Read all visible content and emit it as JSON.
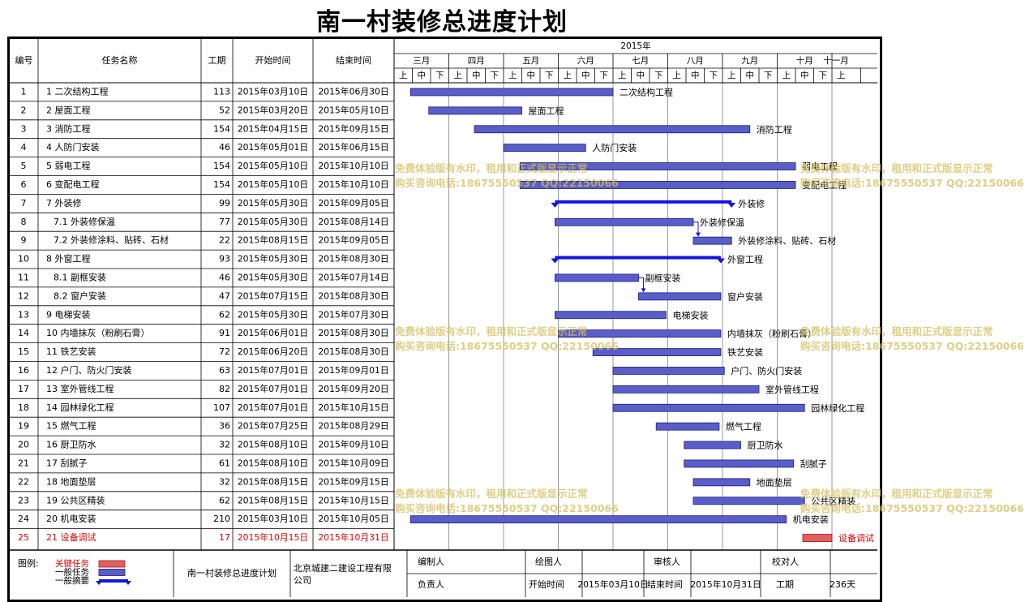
{
  "page_title": "南一村装修总进度计划",
  "chart_data": {
    "type": "gantt",
    "year_label": "2015年",
    "columns": [
      "编号",
      "任务名称",
      "工期",
      "开始时间",
      "结束时间"
    ],
    "months": [
      "三月",
      "四月",
      "五月",
      "六月",
      "七月",
      "八月",
      "九月",
      "十月",
      "十一月"
    ],
    "dekads": [
      "上",
      "中",
      "下"
    ],
    "tasks": [
      {
        "id": "1",
        "name": "1 二次结构工程",
        "indent": 0,
        "duration": 113,
        "start": "2015年03月10日",
        "end": "2015年06月30日",
        "kind": "normal",
        "label": "二次结构工程"
      },
      {
        "id": "2",
        "name": "2 屋面工程",
        "indent": 0,
        "duration": 52,
        "start": "2015年03月20日",
        "end": "2015年05月10日",
        "kind": "normal",
        "label": "屋面工程"
      },
      {
        "id": "3",
        "name": "3 消防工程",
        "indent": 0,
        "duration": 154,
        "start": "2015年04月15日",
        "end": "2015年09月15日",
        "kind": "normal",
        "label": "消防工程"
      },
      {
        "id": "4",
        "name": "4 人防门安装",
        "indent": 0,
        "duration": 46,
        "start": "2015年05月01日",
        "end": "2015年06月15日",
        "kind": "normal",
        "label": "人防门安装"
      },
      {
        "id": "5",
        "name": "5 弱电工程",
        "indent": 0,
        "duration": 154,
        "start": "2015年05月10日",
        "end": "2015年10月10日",
        "kind": "normal",
        "label": "弱电工程"
      },
      {
        "id": "6",
        "name": "6 变配电工程",
        "indent": 0,
        "duration": 154,
        "start": "2015年05月10日",
        "end": "2015年10月10日",
        "kind": "normal",
        "label": "变配电工程"
      },
      {
        "id": "7",
        "name": "7 外装修",
        "indent": 0,
        "duration": 99,
        "start": "2015年05月30日",
        "end": "2015年09月05日",
        "kind": "summary",
        "label": "外装修"
      },
      {
        "id": "8",
        "name": "7.1 外装修保温",
        "indent": 1,
        "duration": 77,
        "start": "2015年05月30日",
        "end": "2015年08月14日",
        "kind": "normal",
        "label": "外装修保温"
      },
      {
        "id": "9",
        "name": "7.2 外装修涂料、贴砖、石材",
        "indent": 1,
        "duration": 22,
        "start": "2015年08月15日",
        "end": "2015年09月05日",
        "kind": "normal",
        "label": "外装修涂料、贴砖、石材"
      },
      {
        "id": "10",
        "name": "8 外窗工程",
        "indent": 0,
        "duration": 93,
        "start": "2015年05月30日",
        "end": "2015年08月30日",
        "kind": "summary",
        "label": "外窗工程"
      },
      {
        "id": "11",
        "name": "8.1 副框安装",
        "indent": 1,
        "duration": 46,
        "start": "2015年05月30日",
        "end": "2015年07月14日",
        "kind": "normal",
        "label": "副框安装"
      },
      {
        "id": "12",
        "name": "8.2 窗户安装",
        "indent": 1,
        "duration": 47,
        "start": "2015年07月15日",
        "end": "2015年08月30日",
        "kind": "normal",
        "label": "窗户安装"
      },
      {
        "id": "13",
        "name": "9 电梯安装",
        "indent": 0,
        "duration": 62,
        "start": "2015年05月30日",
        "end": "2015年07月30日",
        "kind": "normal",
        "label": "电梯安装"
      },
      {
        "id": "14",
        "name": "10 内墙抹灰（粉刷石膏）",
        "indent": 0,
        "duration": 91,
        "start": "2015年06月01日",
        "end": "2015年08月30日",
        "kind": "normal",
        "label": "内墙抹灰（粉刷石膏）"
      },
      {
        "id": "15",
        "name": "11 铁艺安装",
        "indent": 0,
        "duration": 72,
        "start": "2015年06月20日",
        "end": "2015年08月30日",
        "kind": "normal",
        "label": "铁艺安装"
      },
      {
        "id": "16",
        "name": "12 户门、防火门安装",
        "indent": 0,
        "duration": 63,
        "start": "2015年07月01日",
        "end": "2015年09月01日",
        "kind": "normal",
        "label": "户门、防火门安装"
      },
      {
        "id": "17",
        "name": "13 室外管线工程",
        "indent": 0,
        "duration": 82,
        "start": "2015年07月01日",
        "end": "2015年09月20日",
        "kind": "normal",
        "label": "室外管线工程"
      },
      {
        "id": "18",
        "name": "14 园林绿化工程",
        "indent": 0,
        "duration": 107,
        "start": "2015年07月01日",
        "end": "2015年10月15日",
        "kind": "normal",
        "label": "园林绿化工程"
      },
      {
        "id": "19",
        "name": "15 燃气工程",
        "indent": 0,
        "duration": 36,
        "start": "2015年07月25日",
        "end": "2015年08月29日",
        "kind": "normal",
        "label": "燃气工程"
      },
      {
        "id": "20",
        "name": "16 厨卫防水",
        "indent": 0,
        "duration": 32,
        "start": "2015年08月10日",
        "end": "2015年09月10日",
        "kind": "normal",
        "label": "厨卫防水"
      },
      {
        "id": "21",
        "name": "17 刮腻子",
        "indent": 0,
        "duration": 61,
        "start": "2015年08月10日",
        "end": "2015年10月09日",
        "kind": "normal",
        "label": "刮腻子"
      },
      {
        "id": "22",
        "name": "18 地面垫层",
        "indent": 0,
        "duration": 32,
        "start": "2015年08月15日",
        "end": "2015年09月15日",
        "kind": "normal",
        "label": "地面垫层"
      },
      {
        "id": "23",
        "name": "19 公共区精装",
        "indent": 0,
        "duration": 62,
        "start": "2015年08月15日",
        "end": "2015年10月15日",
        "kind": "normal",
        "label": "公共区精装"
      },
      {
        "id": "24",
        "name": "20 机电安装",
        "indent": 0,
        "duration": 210,
        "start": "2015年03月10日",
        "end": "2015年10月05日",
        "kind": "normal",
        "label": "机电安装"
      },
      {
        "id": "25",
        "name": "21 设备调试",
        "indent": 0,
        "duration": 17,
        "start": "2015年10月15日",
        "end": "2015年10月31日",
        "kind": "critical",
        "label": "设备调试"
      }
    ],
    "legend": {
      "title": "图例:",
      "items": [
        {
          "label": "关键任务",
          "kind": "critical"
        },
        {
          "label": "一般任务",
          "kind": "normal"
        },
        {
          "label": "一般摘要",
          "kind": "summary"
        }
      ]
    },
    "colors": {
      "normal_fill": "#5a5ec8",
      "normal_stroke": "#1a1a80",
      "summary": "#1515e0",
      "critical_fill": "#e06060",
      "critical_stroke": "#b01010",
      "critical_text": "#e00000",
      "arrow": "#1515e0"
    }
  },
  "footer": {
    "plan_name": "南一村装修总进度计划",
    "company": "北京城建二建设工程有限公司",
    "fields": {
      "editor_label": "编制人",
      "drafter_label": "绘图人",
      "reviewer_label": "审核人",
      "checker_label": "校对人",
      "owner_label": "负责人",
      "start_label": "开始时间",
      "start_value": "2015年03月10日",
      "end_label": "结束时间",
      "end_value": "2015年10月31日",
      "duration_label": "工期",
      "duration_value": "236天"
    }
  },
  "watermark": {
    "line1": "免费体验版有水印，租用和正式版显示正常",
    "line2": "购买咨询电话:18675550537 QQ:22150066"
  }
}
